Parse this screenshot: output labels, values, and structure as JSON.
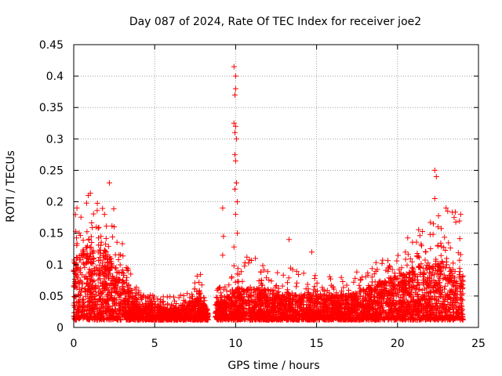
{
  "chart_data": {
    "type": "scatter",
    "title": "Day 087 of 2024, Rate Of TEC Index for receiver joe2",
    "xlabel": "GPS time / hours",
    "ylabel": "ROTI / TECUs",
    "xlim": [
      0,
      25
    ],
    "ylim": [
      0,
      0.45
    ],
    "grid": true,
    "marker": "+",
    "color": "#ff0000",
    "x_ticks": [
      {
        "value": 0,
        "label": "0"
      },
      {
        "value": 5,
        "label": "5"
      },
      {
        "value": 10,
        "label": "10"
      },
      {
        "value": 15,
        "label": "15"
      },
      {
        "value": 20,
        "label": "20"
      },
      {
        "value": 25,
        "label": "25"
      }
    ],
    "y_ticks": [
      {
        "value": 0,
        "label": "0"
      },
      {
        "value": 0.05,
        "label": "0.05"
      },
      {
        "value": 0.1,
        "label": "0.1"
      },
      {
        "value": 0.15,
        "label": "0.15"
      },
      {
        "value": 0.2,
        "label": "0.2"
      },
      {
        "value": 0.25,
        "label": "0.25"
      },
      {
        "value": 0.3,
        "label": "0.3"
      },
      {
        "value": 0.35,
        "label": "0.35"
      },
      {
        "value": 0.4,
        "label": "0.4"
      },
      {
        "value": 0.45,
        "label": "0.45"
      }
    ],
    "density_envelope": [
      {
        "x": 0.0,
        "typical_max": 0.1,
        "peak": 0.18
      },
      {
        "x": 0.5,
        "typical_max": 0.12,
        "peak": 0.2
      },
      {
        "x": 1.0,
        "typical_max": 0.13,
        "peak": 0.215
      },
      {
        "x": 1.5,
        "typical_max": 0.12,
        "peak": 0.2
      },
      {
        "x": 2.0,
        "typical_max": 0.12,
        "peak": 0.23
      },
      {
        "x": 2.5,
        "typical_max": 0.11,
        "peak": 0.19
      },
      {
        "x": 3.0,
        "typical_max": 0.09,
        "peak": 0.16
      },
      {
        "x": 3.5,
        "typical_max": 0.06,
        "peak": 0.09
      },
      {
        "x": 4.0,
        "typical_max": 0.04,
        "peak": 0.06
      },
      {
        "x": 5.0,
        "typical_max": 0.035,
        "peak": 0.05
      },
      {
        "x": 6.0,
        "typical_max": 0.03,
        "peak": 0.05
      },
      {
        "x": 7.0,
        "typical_max": 0.035,
        "peak": 0.06
      },
      {
        "x": 7.8,
        "typical_max": 0.05,
        "peak": 0.09
      },
      {
        "x": 8.2,
        "typical_max": 0.03,
        "peak": 0.04
      },
      {
        "x": 8.5,
        "typical_max": 0.0,
        "peak": 0.0
      },
      {
        "x": 8.8,
        "typical_max": 0.04,
        "peak": 0.06
      },
      {
        "x": 9.5,
        "typical_max": 0.05,
        "peak": 0.08
      },
      {
        "x": 10.0,
        "typical_max": 0.06,
        "peak": 0.1
      },
      {
        "x": 11.0,
        "typical_max": 0.06,
        "peak": 0.12
      },
      {
        "x": 12.0,
        "typical_max": 0.06,
        "peak": 0.11
      },
      {
        "x": 13.0,
        "typical_max": 0.055,
        "peak": 0.1
      },
      {
        "x": 14.0,
        "typical_max": 0.05,
        "peak": 0.09
      },
      {
        "x": 15.0,
        "typical_max": 0.05,
        "peak": 0.09
      },
      {
        "x": 16.0,
        "typical_max": 0.05,
        "peak": 0.08
      },
      {
        "x": 17.0,
        "typical_max": 0.05,
        "peak": 0.09
      },
      {
        "x": 18.0,
        "typical_max": 0.06,
        "peak": 0.09
      },
      {
        "x": 19.0,
        "typical_max": 0.07,
        "peak": 0.11
      },
      {
        "x": 20.0,
        "typical_max": 0.08,
        "peak": 0.13
      },
      {
        "x": 21.0,
        "typical_max": 0.09,
        "peak": 0.15
      },
      {
        "x": 22.0,
        "typical_max": 0.1,
        "peak": 0.17
      },
      {
        "x": 23.0,
        "typical_max": 0.1,
        "peak": 0.19
      },
      {
        "x": 24.0,
        "typical_max": 0.08,
        "peak": 0.18
      }
    ],
    "outliers": [
      {
        "x": 9.9,
        "y": 0.415
      },
      {
        "x": 10.0,
        "y": 0.4
      },
      {
        "x": 9.95,
        "y": 0.37
      },
      {
        "x": 10.0,
        "y": 0.38
      },
      {
        "x": 9.9,
        "y": 0.325
      },
      {
        "x": 10.0,
        "y": 0.32
      },
      {
        "x": 9.95,
        "y": 0.31
      },
      {
        "x": 10.05,
        "y": 0.3
      },
      {
        "x": 9.95,
        "y": 0.275
      },
      {
        "x": 10.0,
        "y": 0.265
      },
      {
        "x": 10.05,
        "y": 0.23
      },
      {
        "x": 9.95,
        "y": 0.22
      },
      {
        "x": 10.1,
        "y": 0.2
      },
      {
        "x": 10.0,
        "y": 0.18
      },
      {
        "x": 9.2,
        "y": 0.19
      },
      {
        "x": 9.25,
        "y": 0.145
      },
      {
        "x": 9.2,
        "y": 0.115
      },
      {
        "x": 9.9,
        "y": 0.128
      },
      {
        "x": 9.9,
        "y": 0.098
      },
      {
        "x": 10.1,
        "y": 0.15
      },
      {
        "x": 13.3,
        "y": 0.14
      },
      {
        "x": 14.7,
        "y": 0.12
      },
      {
        "x": 22.3,
        "y": 0.25
      },
      {
        "x": 22.4,
        "y": 0.24
      },
      {
        "x": 22.3,
        "y": 0.205
      },
      {
        "x": 22.5,
        "y": 0.16
      },
      {
        "x": 23.0,
        "y": 0.19
      },
      {
        "x": 23.1,
        "y": 0.185
      },
      {
        "x": 23.5,
        "y": 0.175
      },
      {
        "x": 23.9,
        "y": 0.18
      },
      {
        "x": 0.2,
        "y": 0.19
      },
      {
        "x": 0.9,
        "y": 0.21
      },
      {
        "x": 2.2,
        "y": 0.23
      },
      {
        "x": 1.9,
        "y": 0.18
      }
    ]
  }
}
